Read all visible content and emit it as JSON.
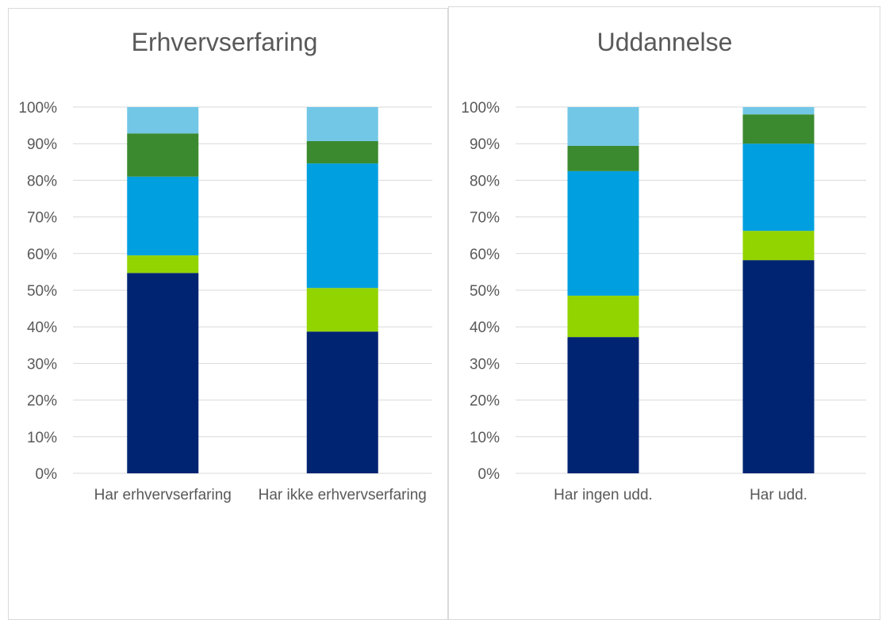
{
  "chart_data": [
    {
      "type": "bar",
      "stacked": true,
      "title": "Erhvervserfaring",
      "categories": [
        "Har erhvervserfaring",
        "Har ikke erhvervserfaring"
      ],
      "series": [
        {
          "color": "#002472",
          "values": [
            54.7,
            38.7
          ]
        },
        {
          "color": "#92d400",
          "values": [
            4.8,
            11.9
          ]
        },
        {
          "color": "#009fe0",
          "values": [
            21.5,
            34.0
          ]
        },
        {
          "color": "#3b8a2f",
          "values": [
            11.8,
            6.1
          ]
        },
        {
          "color": "#72c7e7",
          "values": [
            7.2,
            9.3
          ]
        }
      ],
      "ylim": [
        0,
        100
      ],
      "yticks": [
        {
          "value": 0,
          "label": "0%"
        },
        {
          "value": 10,
          "label": "10%"
        },
        {
          "value": 20,
          "label": "20%"
        },
        {
          "value": 30,
          "label": "30%"
        },
        {
          "value": 40,
          "label": "40%"
        },
        {
          "value": 50,
          "label": "50%"
        },
        {
          "value": 60,
          "label": "60%"
        },
        {
          "value": 70,
          "label": "70%"
        },
        {
          "value": 80,
          "label": "80%"
        },
        {
          "value": 90,
          "label": "90%"
        },
        {
          "value": 100,
          "label": "100%"
        }
      ],
      "grid": true
    },
    {
      "type": "bar",
      "stacked": true,
      "title": "Uddannelse",
      "categories": [
        "Har ingen udd.",
        "Har udd."
      ],
      "series": [
        {
          "color": "#002472",
          "values": [
            37.2,
            58.2
          ]
        },
        {
          "color": "#92d400",
          "values": [
            11.3,
            8.0
          ]
        },
        {
          "color": "#009fe0",
          "values": [
            34.0,
            23.8
          ]
        },
        {
          "color": "#3b8a2f",
          "values": [
            6.9,
            8.0
          ]
        },
        {
          "color": "#72c7e7",
          "values": [
            10.6,
            2.0
          ]
        }
      ],
      "ylim": [
        0,
        100
      ],
      "yticks": [
        {
          "value": 0,
          "label": "0%"
        },
        {
          "value": 10,
          "label": "10%"
        },
        {
          "value": 20,
          "label": "20%"
        },
        {
          "value": 30,
          "label": "30%"
        },
        {
          "value": 40,
          "label": "40%"
        },
        {
          "value": 50,
          "label": "50%"
        },
        {
          "value": 60,
          "label": "60%"
        },
        {
          "value": 70,
          "label": "70%"
        },
        {
          "value": 80,
          "label": "80%"
        },
        {
          "value": 90,
          "label": "90%"
        },
        {
          "value": 100,
          "label": "100%"
        }
      ],
      "grid": true
    }
  ]
}
